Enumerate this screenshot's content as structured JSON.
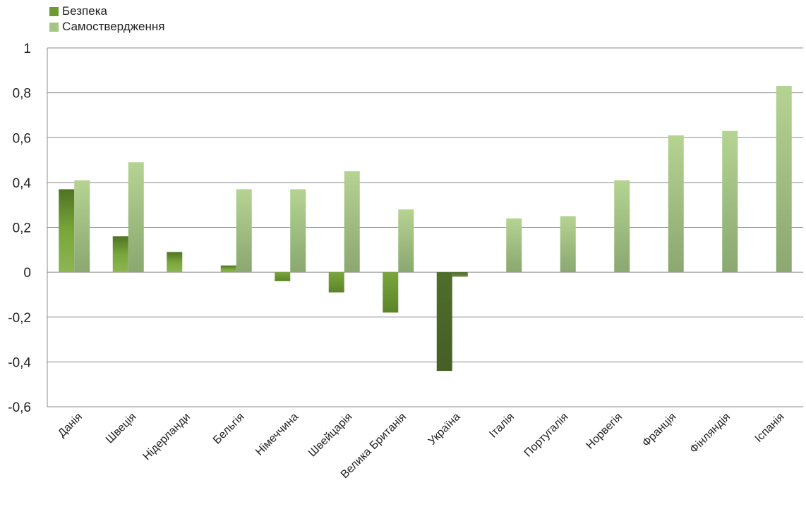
{
  "chart_data": {
    "type": "bar",
    "title": "",
    "xlabel": "",
    "ylabel": "",
    "categories": [
      "Данія",
      "Швеція",
      "Нідерланди",
      "Бельгія",
      "Німеччина",
      "Швейцарія",
      "Велика Британія",
      "Україна",
      "Італія",
      "Португалія",
      "Норвегія",
      "Франція",
      "Фінляндія",
      "Іспанія"
    ],
    "series": [
      {
        "name": "Безпека",
        "color": "#6f9a30",
        "values": [
          0.37,
          0.16,
          0.09,
          0.03,
          -0.04,
          -0.09,
          -0.18,
          -0.44,
          null,
          null,
          null,
          null,
          null,
          null
        ]
      },
      {
        "name": "Самоствердження",
        "color": "#a5c582",
        "values": [
          0.41,
          0.49,
          null,
          0.37,
          0.37,
          0.45,
          0.28,
          -0.02,
          0.24,
          0.25,
          0.41,
          0.61,
          0.63,
          0.83
        ]
      }
    ],
    "yticks": [
      "1",
      "0,8",
      "0,6",
      "0,4",
      "0,2",
      "0",
      "-0,2",
      "-0,4",
      "-0,6"
    ],
    "ylim": [
      -0.6,
      1
    ],
    "grid": true,
    "legend_position": "top-left"
  }
}
